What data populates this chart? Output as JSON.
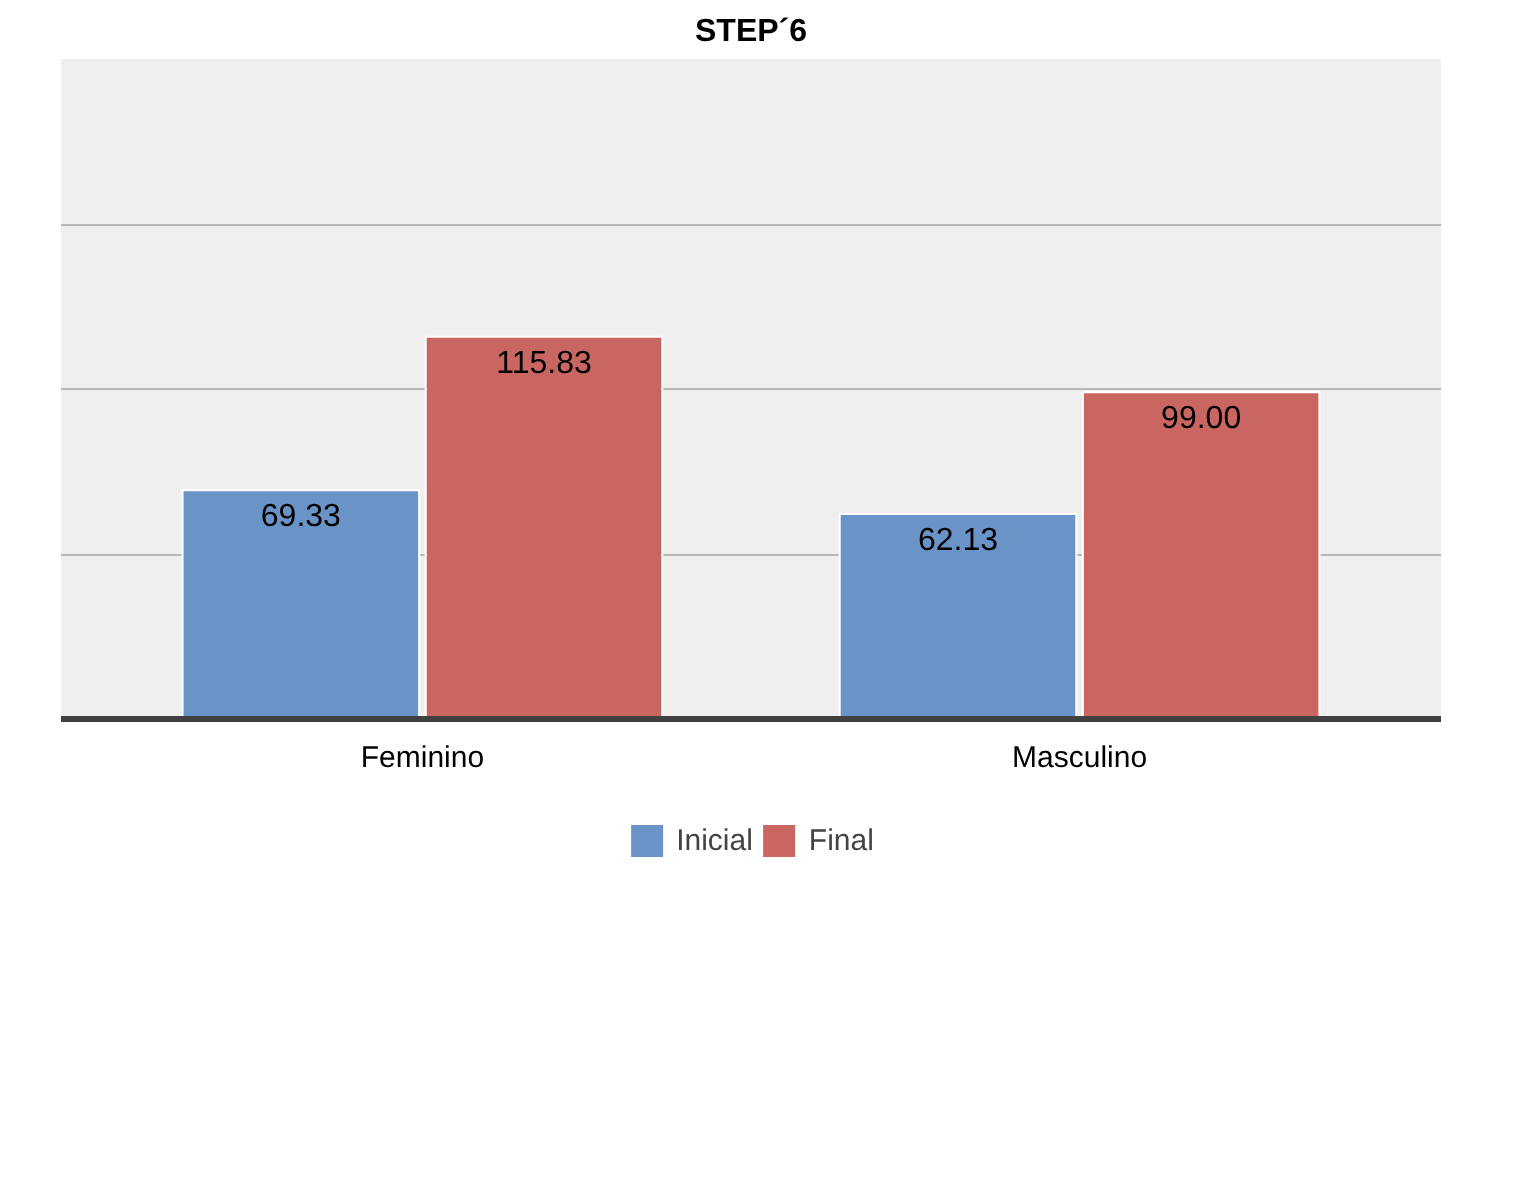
{
  "chart_data": {
    "type": "bar",
    "title": "STEP´6",
    "categories": [
      "Feminino",
      "Masculino"
    ],
    "series": [
      {
        "name": "Inicial",
        "color": "#6a94c8",
        "values": [
          69.33,
          62.13
        ],
        "value_labels": [
          "69.33",
          "62.13"
        ]
      },
      {
        "name": "Final",
        "color": "#c96662",
        "values": [
          115.83,
          99.0
        ],
        "value_labels": [
          "115.83",
          "99.00"
        ]
      }
    ],
    "ylim": [
      0,
      200
    ],
    "yticks": [
      {
        "value": 50,
        "label": null
      },
      {
        "value": 100,
        "label": null
      },
      {
        "value": 150,
        "label": null
      }
    ],
    "tick_labels": "x",
    "grid": "y",
    "legend": "bottom"
  }
}
